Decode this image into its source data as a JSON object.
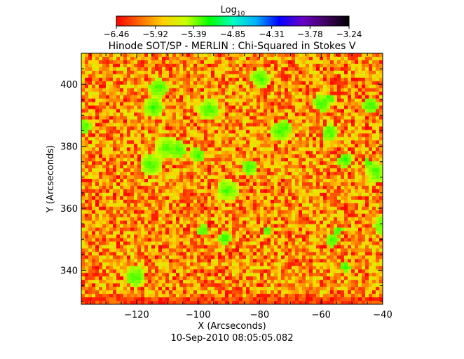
{
  "chart_data": {
    "type": "heatmap",
    "title": "Hinode SOT/SP - MERLIN : Chi-Squared in Stokes V",
    "subtitle": "10-Sep-2010 08:05:05.082",
    "xlabel": "X (Arcseconds)",
    "ylabel": "Y (Arcseconds)",
    "xlim": [
      -138,
      -40
    ],
    "ylim": [
      329,
      410
    ],
    "x_ticks": [
      -120,
      -100,
      -80,
      -60,
      -40
    ],
    "y_ticks": [
      340,
      360,
      380,
      400
    ],
    "x_tick_labels": [
      "−120",
      "−100",
      "−80",
      "−60",
      "−40"
    ],
    "y_tick_labels": [
      "340",
      "360",
      "380",
      "400"
    ],
    "colorbar": {
      "label_base": "Log",
      "label_sub": "10",
      "min": -6.46,
      "max": -3.24,
      "ticks": [
        -6.46,
        -5.92,
        -5.39,
        -4.85,
        -4.31,
        -3.78,
        -3.24
      ],
      "tick_labels": [
        "−6.46",
        "−5.92",
        "−5.39",
        "−4.85",
        "−4.31",
        "−3.78",
        "−3.24"
      ],
      "colormap": [
        "#ff0000",
        "#ff6a00",
        "#ffd000",
        "#c8ff00",
        "#00ff00",
        "#00ffc0",
        "#00b0ff",
        "#0000ff",
        "#6a00c8",
        "#400060",
        "#000000"
      ]
    },
    "field_summary": {
      "dominant_range": [
        -6.46,
        -5.6
      ],
      "typical_value": -5.95,
      "occasional_patches_max": -5.2
    }
  }
}
